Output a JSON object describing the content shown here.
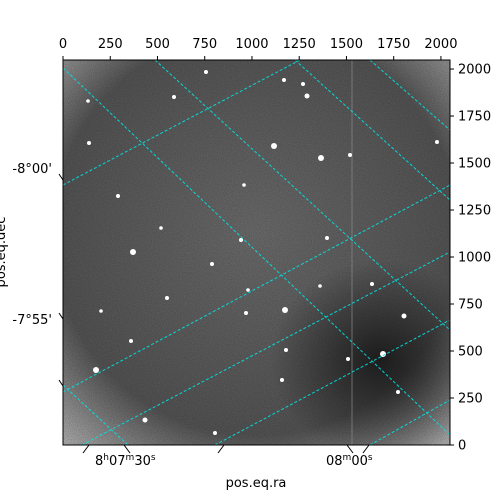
{
  "chart_data": {
    "type": "heatmap",
    "colormap": "gray",
    "pixel_x": {
      "ticks": [
        0,
        250,
        500,
        750,
        1000,
        1250,
        1500,
        1750,
        2000
      ],
      "range": [
        0,
        2048
      ]
    },
    "pixel_y": {
      "ticks": [
        0,
        250,
        500,
        750,
        1000,
        1250,
        1500,
        1750,
        2000
      ],
      "range": [
        0,
        2048
      ]
    },
    "xlabel": "pos.eq.ra",
    "ylabel": "pos.eq.dec",
    "ra_tick_labels": [
      {
        "text_h": "8",
        "sup_h": "h",
        "text_m": "07",
        "sup_m": "m",
        "text_s": "30",
        "sup_s": "s"
      },
      {
        "text_m": "08",
        "sup_m": "m",
        "text_s": "00",
        "sup_s": "s"
      }
    ],
    "dec_tick_labels": [
      "-8°00'",
      "-7°55'"
    ],
    "grid": true,
    "grid_color": "#00e5e5",
    "frame_color": "#000000"
  }
}
